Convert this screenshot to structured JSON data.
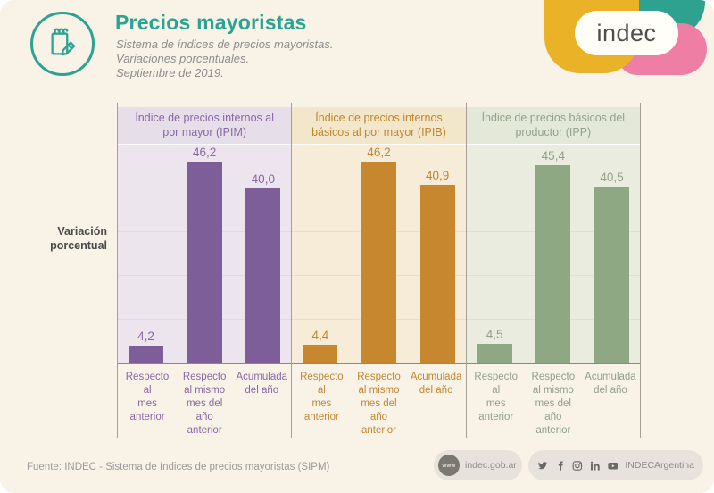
{
  "page": {
    "background": "#f8f2e7",
    "accent_color": "#2aa392"
  },
  "header": {
    "title": "Precios mayoristas",
    "subtitle": "Sistema de índices de precios mayoristas.\nVariaciones porcentuales.\nSeptiembre de 2019.",
    "icon": "notepad-pencil-icon"
  },
  "logo": {
    "text": "indec",
    "colors": {
      "yellow": "#eab226",
      "teal": "#2fa18f",
      "pink": "#ee7ea3"
    }
  },
  "chart_data": {
    "type": "bar",
    "ylabel": "Variación porcentual",
    "ylabel_display": "Variación\nporcentual",
    "ylim": [
      0,
      50
    ],
    "gridlines": [
      10,
      20,
      30,
      40
    ],
    "legend_position": "none",
    "categories": [
      "Respecto al mes anterior",
      "Respecto al mismo mes del año anterior",
      "Acumulada del año"
    ],
    "categories_display": [
      "Respecto\nal\nmes\nanterior",
      "Respecto\nal mismo\nmes del\naño\nanterior",
      "Acumulada\ndel año"
    ],
    "panels": [
      {
        "title": "Índice de precios internos al por mayor (IPIM)",
        "values": [
          4.2,
          46.2,
          40.0
        ],
        "value_labels": [
          "4,2",
          "46,2",
          "40,0"
        ],
        "bar_color": "#7d5e99"
      },
      {
        "title": "Índice de precios internos básicos al por mayor (IPIB)",
        "values": [
          4.4,
          46.2,
          40.9
        ],
        "value_labels": [
          "4,4",
          "46,2",
          "40,9"
        ],
        "bar_color": "#c6872f"
      },
      {
        "title": "Índice de precios básicos del productor (IPP)",
        "values": [
          4.5,
          45.4,
          40.5
        ],
        "value_labels": [
          "4,5",
          "45,4",
          "40,5"
        ],
        "bar_color": "#8fa884"
      }
    ]
  },
  "footer": {
    "source": "Fuente: INDEC - Sistema de índices de precios mayoristas (SIPM)",
    "www_label": "www",
    "website": "indec.gob.ar",
    "social_handle": "INDECArgentina",
    "social_icons": [
      "twitter-icon",
      "facebook-icon",
      "instagram-icon",
      "linkedin-icon",
      "youtube-icon"
    ]
  }
}
